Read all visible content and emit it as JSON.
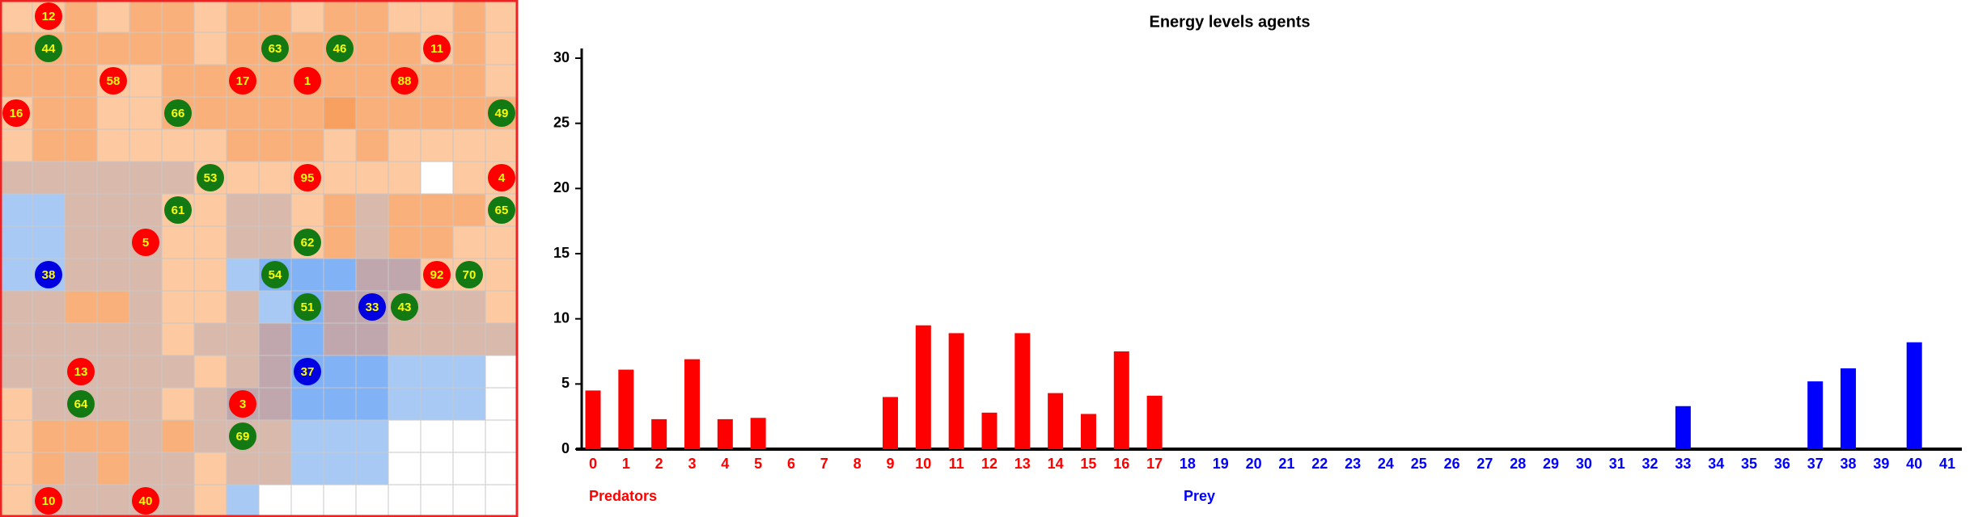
{
  "chart_data": {
    "type": "bar",
    "title": "Energy levels agents",
    "categories": [
      "0",
      "1",
      "2",
      "3",
      "4",
      "5",
      "6",
      "7",
      "8",
      "9",
      "10",
      "11",
      "12",
      "13",
      "14",
      "15",
      "16",
      "17",
      "18",
      "19",
      "20",
      "21",
      "22",
      "23",
      "24",
      "25",
      "26",
      "27",
      "28",
      "29",
      "30",
      "31",
      "32",
      "33",
      "34",
      "35",
      "36",
      "37",
      "38",
      "39",
      "40",
      "41"
    ],
    "series": [
      {
        "name": "Predators",
        "color": "#ff0000",
        "values": [
          4.5,
          6.1,
          2.3,
          6.9,
          2.3,
          2.4,
          0,
          0,
          0,
          4.0,
          9.5,
          8.9,
          2.8,
          8.9,
          4.3,
          2.7,
          7.5,
          4.1,
          null,
          null,
          null,
          null,
          null,
          null,
          null,
          null,
          null,
          null,
          null,
          null,
          null,
          null,
          null,
          null,
          null,
          null,
          null,
          null,
          null,
          null,
          null,
          null
        ]
      },
      {
        "name": "Prey",
        "color": "#0000ff",
        "values": [
          null,
          null,
          null,
          null,
          null,
          null,
          null,
          null,
          null,
          null,
          null,
          null,
          null,
          null,
          null,
          null,
          null,
          null,
          0,
          0,
          0,
          0,
          0,
          0,
          0,
          0,
          0,
          0,
          0,
          0,
          0,
          0,
          0,
          3.3,
          0,
          0,
          0,
          5.2,
          6.2,
          0,
          8.2,
          0
        ]
      }
    ],
    "ylim": [
      0,
      30
    ],
    "yticks": [
      0,
      5,
      10,
      15,
      20,
      25,
      30
    ]
  },
  "world": {
    "agents": [
      {
        "label": "12",
        "color": "#ff0000"
      },
      {
        "label": "44",
        "color": "#137a13"
      },
      {
        "label": "63",
        "color": "#137a13"
      },
      {
        "label": "46",
        "color": "#137a13"
      },
      {
        "label": "11",
        "color": "#ff0000"
      },
      {
        "label": "58",
        "color": "#ff0000"
      },
      {
        "label": "17",
        "color": "#ff0000"
      },
      {
        "label": "1",
        "color": "#ff0000"
      },
      {
        "label": "88",
        "color": "#ff0000"
      },
      {
        "label": "16",
        "color": "#ff0000"
      },
      {
        "label": "66",
        "color": "#137a13"
      },
      {
        "label": "49",
        "color": "#137a13"
      },
      {
        "label": "53",
        "color": "#137a13"
      },
      {
        "label": "95",
        "color": "#ff0000"
      },
      {
        "label": "4",
        "color": "#ff0000"
      },
      {
        "label": "61",
        "color": "#137a13"
      },
      {
        "label": "65",
        "color": "#137a13"
      },
      {
        "label": "5",
        "color": "#ff0000"
      },
      {
        "label": "62",
        "color": "#137a13"
      },
      {
        "label": "38",
        "color": "#0000e0"
      },
      {
        "label": "54",
        "color": "#137a13"
      },
      {
        "label": "92",
        "color": "#ff0000"
      },
      {
        "label": "70",
        "color": "#137a13"
      },
      {
        "label": "51",
        "color": "#137a13"
      },
      {
        "label": "33",
        "color": "#0000e0"
      },
      {
        "label": "43",
        "color": "#137a13"
      },
      {
        "label": "13",
        "color": "#ff0000"
      },
      {
        "label": "37",
        "color": "#0000e0"
      },
      {
        "label": "64",
        "color": "#137a13"
      },
      {
        "label": "3",
        "color": "#ff0000"
      },
      {
        "label": "69",
        "color": "#137a13"
      },
      {
        "label": "10",
        "color": "#ff0000"
      },
      {
        "label": "40",
        "color": "#ff0000"
      }
    ]
  }
}
